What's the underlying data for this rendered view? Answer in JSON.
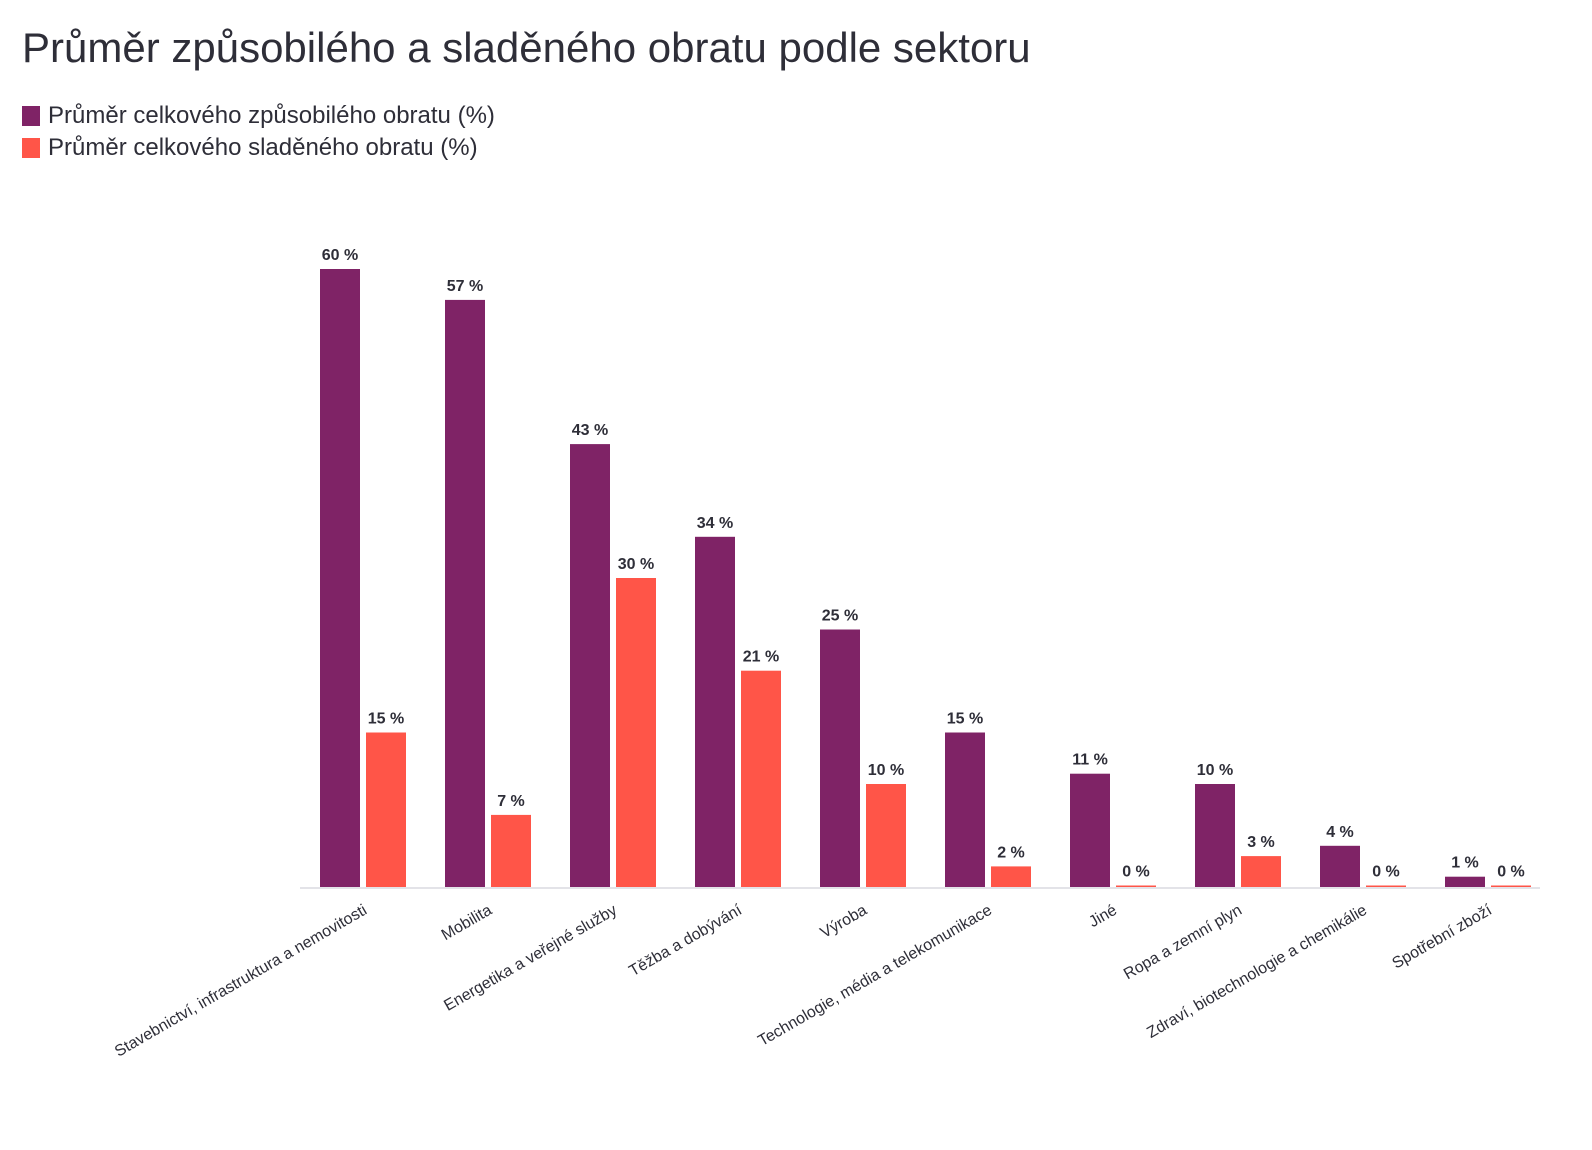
{
  "chart_data": {
    "type": "bar",
    "title": "Průměr způsobilého a sladěného obratu podle sektoru",
    "xlabel": "",
    "ylabel": "",
    "ylim": [
      0,
      60
    ],
    "grid": false,
    "legend_position": "top-left",
    "categories": [
      "Stavebnictví, infrastruktura a nemovitosti",
      "Mobilita",
      "Energetika a veřejné služby",
      "Těžba a dobývání",
      "Výroba",
      "Technologie, média a telekomunikace",
      "Jiné",
      "Ropa a zemní plyn",
      "Zdraví, biotechnologie a chemikálie",
      "Spotřební zboží"
    ],
    "series": [
      {
        "name": "Průměr celkového způsobilého obratu (%)",
        "color": "#7f2366",
        "values": [
          60,
          57,
          43,
          34,
          25,
          15,
          11,
          10,
          4,
          1
        ],
        "labels": [
          "60 %",
          "57 %",
          "43 %",
          "34 %",
          "25 %",
          "15 %",
          "11 %",
          "10 %",
          "4 %",
          "1 %"
        ]
      },
      {
        "name": "Průměr celkového sladěného obratu (%)",
        "color": "#ff5548",
        "values": [
          15,
          7,
          30,
          21,
          10,
          2,
          0,
          3,
          0,
          0
        ],
        "labels": [
          "15 %",
          "7 %",
          "30 %",
          "21 %",
          "10 %",
          "2 %",
          "0 %",
          "3 %",
          "0 %",
          "0 %"
        ]
      }
    ]
  }
}
